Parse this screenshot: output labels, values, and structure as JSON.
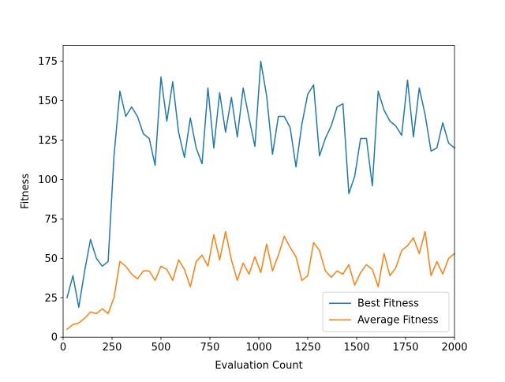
{
  "chart_data": {
    "type": "line",
    "title": "",
    "xlabel": "Evaluation Count",
    "ylabel": "Fitness",
    "xlim": [
      0,
      2000
    ],
    "ylim": [
      0,
      185
    ],
    "x_ticks": [
      0,
      250,
      500,
      750,
      1000,
      1250,
      1500,
      1750,
      2000
    ],
    "y_ticks": [
      0,
      25,
      50,
      75,
      100,
      125,
      150,
      175
    ],
    "x_tick_labels": [
      "0",
      "250",
      "500",
      "750",
      "1000",
      "1250",
      "1500",
      "1750",
      "2000"
    ],
    "y_tick_labels": [
      "0",
      "25",
      "50",
      "75",
      "100",
      "125",
      "150",
      "175"
    ],
    "grid": false,
    "legend_position": "lower-right",
    "x": [
      20,
      50,
      80,
      110,
      140,
      170,
      200,
      230,
      260,
      290,
      320,
      350,
      380,
      410,
      440,
      470,
      500,
      530,
      560,
      590,
      620,
      650,
      680,
      710,
      740,
      770,
      800,
      830,
      860,
      890,
      920,
      950,
      980,
      1010,
      1040,
      1070,
      1100,
      1130,
      1160,
      1190,
      1220,
      1250,
      1280,
      1310,
      1340,
      1370,
      1400,
      1430,
      1460,
      1490,
      1520,
      1550,
      1580,
      1610,
      1640,
      1670,
      1700,
      1730,
      1760,
      1790,
      1820,
      1850,
      1880,
      1910,
      1940,
      1970,
      2000
    ],
    "series": [
      {
        "name": "Best Fitness",
        "color": "#1f77b4",
        "values": [
          25,
          39,
          19,
          42,
          62,
          50,
          45,
          48,
          115,
          156,
          140,
          146,
          140,
          129,
          126,
          109,
          165,
          137,
          162,
          130,
          114,
          139,
          120,
          110,
          158,
          120,
          155,
          130,
          152,
          127,
          158,
          139,
          121,
          175,
          153,
          116,
          140,
          140,
          133,
          108,
          135,
          154,
          160,
          115,
          126,
          134,
          146,
          148,
          91,
          102,
          126,
          126,
          96,
          156,
          144,
          137,
          134,
          128,
          163,
          127,
          158,
          141,
          118,
          120,
          136,
          123,
          120
        ]
      },
      {
        "name": "Average Fitness",
        "color": "#ff7f0e",
        "values": [
          5,
          8,
          9,
          12,
          16,
          15,
          18,
          15,
          25,
          48,
          45,
          40,
          37,
          42,
          42,
          36,
          45,
          43,
          36,
          49,
          43,
          32,
          48,
          52,
          45,
          65,
          49,
          67,
          49,
          36,
          47,
          40,
          51,
          41,
          59,
          42,
          52,
          64,
          57,
          51,
          36,
          39,
          60,
          55,
          42,
          38,
          42,
          40,
          46,
          33,
          41,
          46,
          43,
          32,
          53,
          39,
          44,
          55,
          58,
          63,
          53,
          67,
          39,
          48,
          40,
          50,
          53
        ]
      }
    ]
  }
}
